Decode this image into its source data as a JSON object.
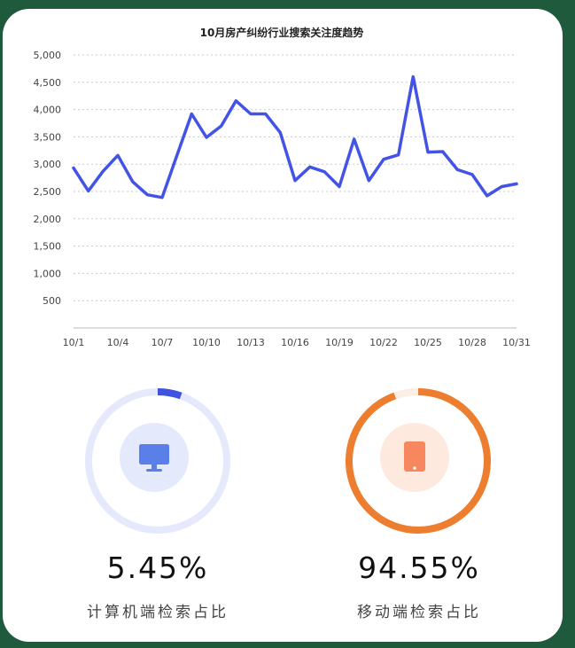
{
  "chart_data": {
    "type": "line",
    "title": "10月房产纠纷行业搜索关注度趋势",
    "xlabel": "",
    "ylabel": "",
    "ylim": [
      0,
      5000
    ],
    "yticks": [
      500,
      1000,
      1500,
      2000,
      2500,
      3000,
      3500,
      4000,
      4500,
      5000
    ],
    "ytick_labels": [
      "500",
      "1,000",
      "1,500",
      "2,000",
      "2,500",
      "3,000",
      "3,500",
      "4,000",
      "4,500",
      "5,000"
    ],
    "x_tick_labels": [
      "10/1",
      "10/4",
      "10/7",
      "10/10",
      "10/13",
      "10/16",
      "10/19",
      "10/22",
      "10/25",
      "10/28",
      "10/31"
    ],
    "x": [
      "10/1",
      "10/2",
      "10/3",
      "10/4",
      "10/5",
      "10/6",
      "10/7",
      "10/8",
      "10/9",
      "10/10",
      "10/11",
      "10/12",
      "10/13",
      "10/14",
      "10/15",
      "10/16",
      "10/17",
      "10/18",
      "10/19",
      "10/20",
      "10/21",
      "10/22",
      "10/23",
      "10/24",
      "10/25",
      "10/26",
      "10/27",
      "10/28",
      "10/29",
      "10/30",
      "10/31"
    ],
    "series": [
      {
        "name": "搜索关注度",
        "color": "#4353e6",
        "values": [
          2930,
          2510,
          2870,
          3160,
          2680,
          2440,
          2390,
          3160,
          3920,
          3490,
          3700,
          4160,
          3920,
          3920,
          3580,
          2700,
          2950,
          2860,
          2590,
          3460,
          2700,
          3090,
          3170,
          4600,
          3220,
          3230,
          2900,
          2810,
          2420,
          2590,
          2640
        ]
      }
    ]
  },
  "devices": [
    {
      "name": "desktop",
      "percent_value": 5.45,
      "percent_text": "5.45%",
      "label": "计算机端检索占比",
      "icon": "monitor-icon",
      "color": "#3f52e0",
      "track_color": "#e5e9fb",
      "icon_bg_color": "#e4e9fc",
      "icon_color": "#5b7fe8"
    },
    {
      "name": "mobile",
      "percent_value": 94.55,
      "percent_text": "94.55%",
      "label": "移动端检索占比",
      "icon": "tablet-icon",
      "color": "#ee7e2f",
      "track_color": "#fbeee4",
      "icon_bg_color": "#fde9dd",
      "icon_color": "#f6875e"
    }
  ]
}
